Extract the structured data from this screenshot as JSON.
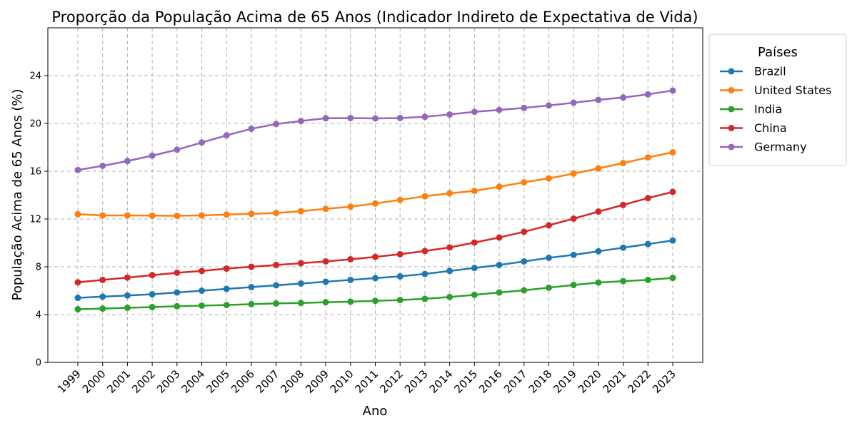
{
  "chart_data": {
    "type": "line",
    "title": "Proporção da População Acima de 65 Anos (Indicador Indireto de Expectativa de Vida)",
    "xlabel": "Ano",
    "ylabel": "População Acima de 65 Anos (%)",
    "ylim": [
      0,
      28
    ],
    "yticks": [
      0,
      4,
      8,
      12,
      16,
      20,
      24
    ],
    "grid": true,
    "legend": {
      "title": "Países",
      "placement": "outside-top-right"
    },
    "x": [
      "1999",
      "2000",
      "2001",
      "2002",
      "2003",
      "2004",
      "2005",
      "2006",
      "2007",
      "2008",
      "2009",
      "2010",
      "2011",
      "2012",
      "2013",
      "2014",
      "2015",
      "2016",
      "2017",
      "2018",
      "2019",
      "2020",
      "2021",
      "2022",
      "2023"
    ],
    "series": [
      {
        "name": "Brazil",
        "color": "#1f77b4",
        "values": [
          5.4,
          5.5,
          5.6,
          5.7,
          5.85,
          6.0,
          6.15,
          6.3,
          6.45,
          6.6,
          6.75,
          6.9,
          7.05,
          7.2,
          7.4,
          7.65,
          7.9,
          8.15,
          8.45,
          8.75,
          9.0,
          9.3,
          9.6,
          9.9,
          10.2
        ]
      },
      {
        "name": "United States",
        "color": "#ff7f0e",
        "values": [
          12.4,
          12.3,
          12.3,
          12.28,
          12.27,
          12.3,
          12.37,
          12.43,
          12.5,
          12.65,
          12.85,
          13.03,
          13.3,
          13.6,
          13.9,
          14.15,
          14.35,
          14.7,
          15.07,
          15.4,
          15.8,
          16.23,
          16.68,
          17.15,
          17.58
        ]
      },
      {
        "name": "India",
        "color": "#2ca02c",
        "values": [
          4.45,
          4.5,
          4.57,
          4.63,
          4.7,
          4.75,
          4.8,
          4.87,
          4.93,
          4.97,
          5.03,
          5.08,
          5.15,
          5.22,
          5.32,
          5.47,
          5.65,
          5.85,
          6.03,
          6.25,
          6.48,
          6.68,
          6.8,
          6.9,
          7.07
        ]
      },
      {
        "name": "China",
        "color": "#d62728",
        "values": [
          6.7,
          6.9,
          7.1,
          7.3,
          7.5,
          7.65,
          7.85,
          8.0,
          8.15,
          8.3,
          8.45,
          8.63,
          8.83,
          9.05,
          9.32,
          9.62,
          10.03,
          10.45,
          10.93,
          11.47,
          12.03,
          12.62,
          13.18,
          13.75,
          14.27
        ]
      },
      {
        "name": "Germany",
        "color": "#9467bd",
        "values": [
          16.1,
          16.45,
          16.85,
          17.3,
          17.8,
          18.4,
          19.0,
          19.55,
          19.95,
          20.2,
          20.43,
          20.45,
          20.42,
          20.45,
          20.55,
          20.75,
          20.97,
          21.13,
          21.3,
          21.5,
          21.73,
          21.97,
          22.17,
          22.43,
          22.75
        ]
      }
    ]
  }
}
